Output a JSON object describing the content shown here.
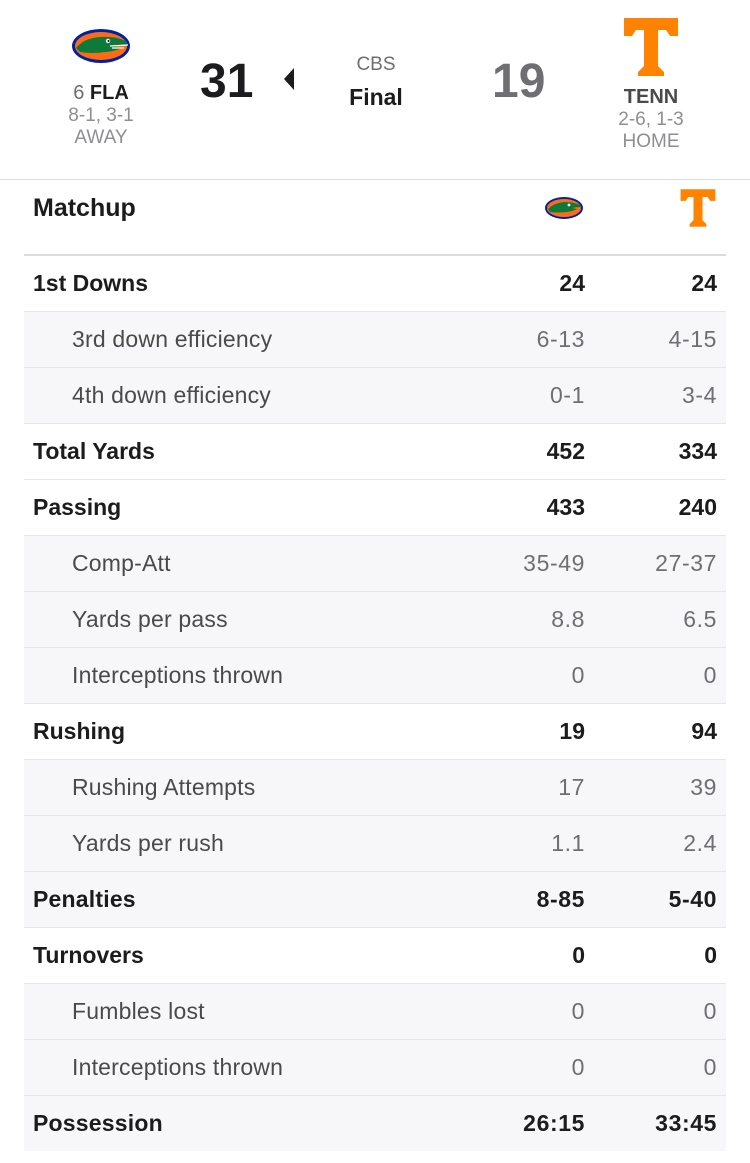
{
  "game": {
    "network": "CBS",
    "status": "Final"
  },
  "away": {
    "rank": "6",
    "abbr": "FLA",
    "record": "8-1, 3-1",
    "side": "AWAY",
    "score": "31",
    "logo": "gators-logo-icon",
    "color": "#0021a5"
  },
  "home": {
    "abbr": "TENN",
    "record": "2-6, 1-3",
    "side": "HOME",
    "score": "19",
    "logo": "power-t-logo-icon",
    "color": "#ff8200"
  },
  "matchup": {
    "title": "Matchup",
    "rows": [
      {
        "label": "1st Downs",
        "away": "24",
        "home": "24",
        "type": "main"
      },
      {
        "label": "3rd down efficiency",
        "away": "6-13",
        "home": "4-15",
        "type": "sub"
      },
      {
        "label": "4th down efficiency",
        "away": "0-1",
        "home": "3-4",
        "type": "sub"
      },
      {
        "label": "Total Yards",
        "away": "452",
        "home": "334",
        "type": "main"
      },
      {
        "label": "Passing",
        "away": "433",
        "home": "240",
        "type": "main"
      },
      {
        "label": "Comp-Att",
        "away": "35-49",
        "home": "27-37",
        "type": "sub"
      },
      {
        "label": "Yards per pass",
        "away": "8.8",
        "home": "6.5",
        "type": "sub"
      },
      {
        "label": "Interceptions thrown",
        "away": "0",
        "home": "0",
        "type": "sub"
      },
      {
        "label": "Rushing",
        "away": "19",
        "home": "94",
        "type": "main"
      },
      {
        "label": "Rushing Attempts",
        "away": "17",
        "home": "39",
        "type": "sub"
      },
      {
        "label": "Yards per rush",
        "away": "1.1",
        "home": "2.4",
        "type": "sub"
      },
      {
        "label": "Penalties",
        "away": "8-85",
        "home": "5-40",
        "type": "sub-bold"
      },
      {
        "label": "Turnovers",
        "away": "0",
        "home": "0",
        "type": "main"
      },
      {
        "label": "Fumbles lost",
        "away": "0",
        "home": "0",
        "type": "sub"
      },
      {
        "label": "Interceptions thrown",
        "away": "0",
        "home": "0",
        "type": "sub"
      },
      {
        "label": "Possession",
        "away": "26:15",
        "home": "33:45",
        "type": "sub-bold"
      }
    ]
  }
}
